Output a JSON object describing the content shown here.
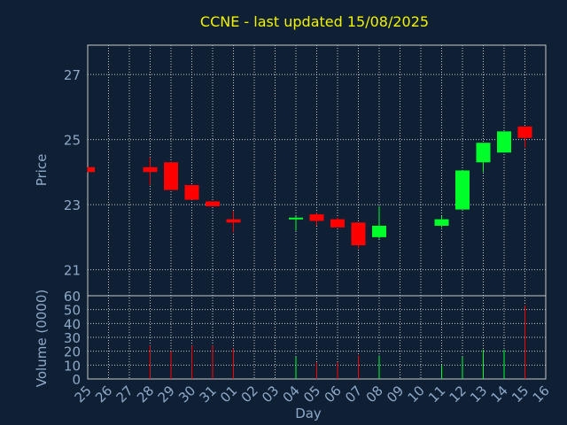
{
  "chart_data": {
    "type": "candlestick",
    "title": "CCNE - last updated 15/08/2025",
    "xlabel": "Day",
    "x_ticks": [
      "25",
      "26",
      "27",
      "28",
      "29",
      "30",
      "31",
      "01",
      "02",
      "03",
      "04",
      "05",
      "06",
      "07",
      "08",
      "09",
      "10",
      "11",
      "12",
      "13",
      "14",
      "15",
      "16"
    ],
    "price_axis": {
      "ylabel": "Price",
      "ylim": [
        20.2,
        27.9
      ],
      "ticks": [
        21,
        23,
        25,
        27
      ]
    },
    "volume_axis": {
      "ylabel": "Volume (0000)",
      "ylim": [
        0,
        60
      ],
      "ticks": [
        0,
        10,
        20,
        30,
        40,
        50,
        60
      ]
    },
    "grid": true,
    "colors": {
      "up": "#00ff2a",
      "down": "#ff0000",
      "background": "#0f2035",
      "title": "#f2f200",
      "axis_text": "#8ea9c8"
    },
    "candles": [
      {
        "day": "25",
        "open": 24.15,
        "high": 24.15,
        "low": 24.0,
        "close": 24.0,
        "volume": 0
      },
      {
        "day": "28",
        "open": 24.15,
        "high": 24.45,
        "low": 23.6,
        "close": 24.0,
        "volume": 24
      },
      {
        "day": "29",
        "open": 24.3,
        "high": 24.3,
        "low": 23.45,
        "close": 23.45,
        "volume": 20
      },
      {
        "day": "30",
        "open": 23.6,
        "high": 23.6,
        "low": 23.15,
        "close": 23.15,
        "volume": 24
      },
      {
        "day": "31",
        "open": 23.1,
        "high": 23.1,
        "low": 22.95,
        "close": 22.95,
        "volume": 24
      },
      {
        "day": "01",
        "open": 22.55,
        "high": 22.8,
        "low": 22.15,
        "close": 22.45,
        "volume": 22
      },
      {
        "day": "04",
        "open": 22.55,
        "high": 22.65,
        "low": 22.2,
        "close": 22.6,
        "volume": 16
      },
      {
        "day": "05",
        "open": 22.7,
        "high": 22.75,
        "low": 22.35,
        "close": 22.5,
        "volume": 12
      },
      {
        "day": "06",
        "open": 22.55,
        "high": 22.6,
        "low": 22.3,
        "close": 22.3,
        "volume": 12
      },
      {
        "day": "07",
        "open": 22.45,
        "high": 22.45,
        "low": 21.65,
        "close": 21.75,
        "volume": 17
      },
      {
        "day": "08",
        "open": 22.0,
        "high": 22.95,
        "low": 21.95,
        "close": 22.35,
        "volume": 17
      },
      {
        "day": "11",
        "open": 22.35,
        "high": 22.65,
        "low": 22.3,
        "close": 22.55,
        "volume": 10
      },
      {
        "day": "12",
        "open": 22.85,
        "high": 24.05,
        "low": 22.85,
        "close": 24.05,
        "volume": 16
      },
      {
        "day": "13",
        "open": 24.3,
        "high": 24.9,
        "low": 24.0,
        "close": 24.9,
        "volume": 21
      },
      {
        "day": "14",
        "open": 24.6,
        "high": 25.25,
        "low": 24.6,
        "close": 25.25,
        "volume": 21
      },
      {
        "day": "15",
        "open": 25.4,
        "high": 25.4,
        "low": 24.75,
        "close": 25.05,
        "volume": 53
      }
    ]
  }
}
